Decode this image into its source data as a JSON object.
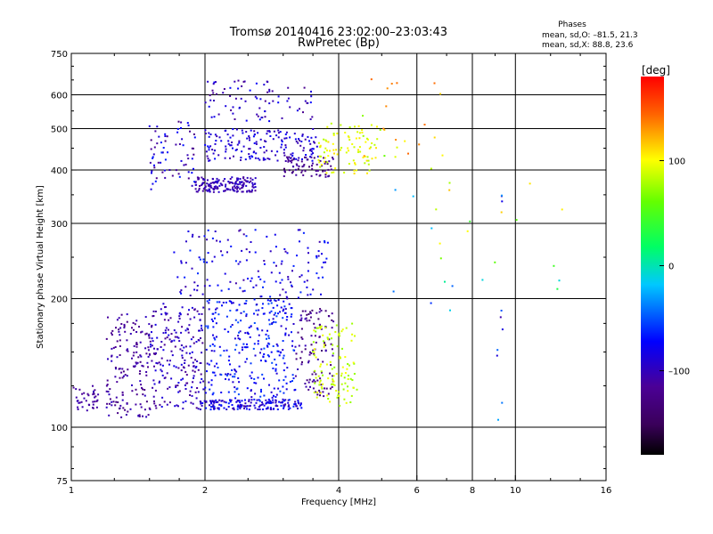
{
  "chart_data": {
    "type": "scatter",
    "title": "Tromsø 20140416 23:02:00–23:03:43",
    "subtitle": "RwPretec (Bp)",
    "xlabel": "Frequency [MHz]",
    "ylabel": "Stationary phase Virtual Height [km]",
    "x_scale": "log",
    "y_scale": "log",
    "xlim": [
      1,
      16
    ],
    "ylim": [
      75,
      750
    ],
    "x_ticks": [
      1,
      2,
      4,
      6,
      8,
      10,
      16
    ],
    "x_tick_labels": [
      "1",
      "2",
      "4",
      "6",
      "8",
      "10",
      "16"
    ],
    "y_ticks": [
      75,
      100,
      200,
      300,
      400,
      500,
      600,
      750
    ],
    "y_tick_labels": [
      "75",
      "100",
      "200",
      "300",
      "400",
      "500",
      "600",
      "750"
    ],
    "x_gridlines": [
      2,
      4,
      6,
      8,
      10
    ],
    "y_gridlines": [
      100,
      200,
      300,
      400,
      500,
      600
    ],
    "grid": true,
    "phases": {
      "heading": "Phases",
      "o_line": "mean, sd,O: –81.5, 21.3",
      "x_line": "mean, sd,X:  88.8, 23.6"
    },
    "colorbar": {
      "label": "[deg]",
      "range": [
        -180,
        180
      ],
      "ticks": [
        100,
        0,
        -100
      ],
      "tick_labels": [
        "100",
        "0",
        "–100"
      ],
      "colormap": "rainbow (black → purple → blue → cyan → green → yellow → red)"
    },
    "clusters": [
      {
        "f": [
          1.0,
          1.15
        ],
        "h": [
          108,
          125
        ],
        "phase": [
          -120,
          -100
        ],
        "count": 40
      },
      {
        "f": [
          1.2,
          1.5
        ],
        "h": [
          105,
          185
        ],
        "phase": [
          -130,
          -95
        ],
        "count": 160
      },
      {
        "f": [
          1.5,
          2.0
        ],
        "h": [
          110,
          195
        ],
        "phase": [
          -120,
          -80
        ],
        "count": 220
      },
      {
        "f": [
          1.95,
          3.3
        ],
        "h": [
          110,
          116
        ],
        "phase": [
          -110,
          -60
        ],
        "count": 160
      },
      {
        "f": [
          2.0,
          3.2
        ],
        "h": [
          115,
          200
        ],
        "phase": [
          -95,
          -50
        ],
        "count": 300
      },
      {
        "f": [
          3.2,
          3.9
        ],
        "h": [
          118,
          190
        ],
        "phase": [
          -140,
          -100
        ],
        "count": 110
      },
      {
        "f": [
          3.5,
          4.4
        ],
        "h": [
          112,
          175
        ],
        "phase": [
          70,
          100
        ],
        "count": 110
      },
      {
        "f": [
          1.7,
          3.8
        ],
        "h": [
          200,
          290
        ],
        "phase": [
          -110,
          -60
        ],
        "count": 150
      },
      {
        "f": [
          1.9,
          2.6
        ],
        "h": [
          355,
          385
        ],
        "phase": [
          -115,
          -90
        ],
        "count": 160
      },
      {
        "f": [
          2.0,
          3.6
        ],
        "h": [
          420,
          500
        ],
        "phase": [
          -110,
          -70
        ],
        "count": 170
      },
      {
        "f": [
          3.0,
          3.9
        ],
        "h": [
          385,
          430
        ],
        "phase": [
          -140,
          -105
        ],
        "count": 70
      },
      {
        "f": [
          3.6,
          4.9
        ],
        "h": [
          390,
          520
        ],
        "phase": [
          80,
          110
        ],
        "count": 90
      },
      {
        "f": [
          1.5,
          1.9
        ],
        "h": [
          360,
          520
        ],
        "phase": [
          -130,
          -60
        ],
        "count": 70
      },
      {
        "f": [
          2.0,
          3.5
        ],
        "h": [
          520,
          650
        ],
        "phase": [
          -120,
          -70
        ],
        "count": 80
      },
      {
        "f": [
          4.4,
          7.0
        ],
        "h": [
          390,
          660
        ],
        "phase": [
          60,
          150
        ],
        "count": 25
      },
      {
        "f": [
          5.0,
          9.5
        ],
        "h": [
          180,
          380
        ],
        "phase": [
          -60,
          120
        ],
        "count": 18
      },
      {
        "f": [
          9.0,
          9.5
        ],
        "h": [
          80,
          380
        ],
        "phase": [
          -120,
          -20
        ],
        "count": 10
      },
      {
        "f": [
          10.0,
          13.0
        ],
        "h": [
          160,
          380
        ],
        "phase": [
          -40,
          110
        ],
        "count": 6
      }
    ]
  }
}
